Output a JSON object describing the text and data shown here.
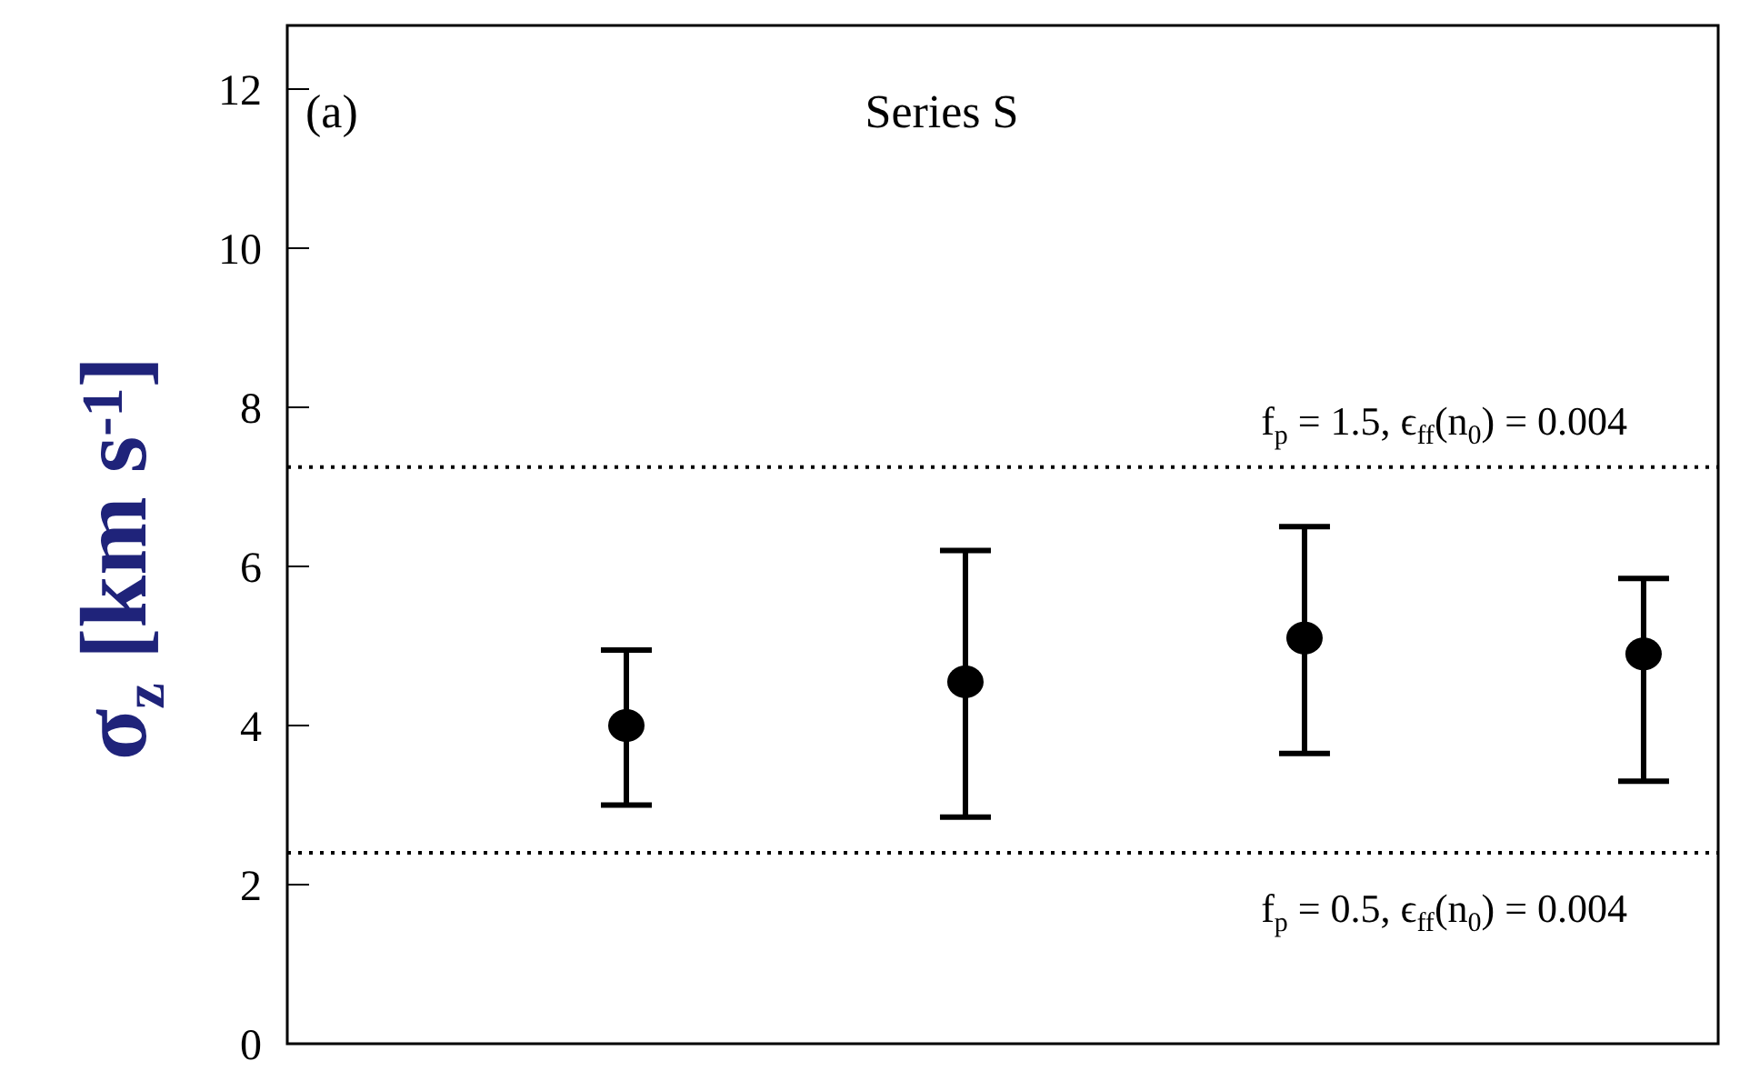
{
  "chart_data": {
    "type": "scatter",
    "title": "Series S",
    "ylabel": "σ$_{z}$ [km s$^{-1}$]",
    "annotations": [
      "(a)",
      {
        "text": "f$_{p}$ = 1.5, ϵ$_{ff}$(n$_{0}$) = 0.004",
        "y": 7.25
      },
      {
        "text": "f$_{p}$ = 0.5, ϵ$_{ff}$(n$_{0}$) = 0.004",
        "y": 2.4
      }
    ],
    "categories": [
      null,
      null,
      null,
      null
    ],
    "series": [
      {
        "color": "#000000",
        "values": [
          4.0,
          4.55,
          5.1,
          4.9
        ],
        "errors": [
          [
            3.0,
            4.95
          ],
          [
            2.85,
            6.2
          ],
          [
            3.65,
            6.5
          ],
          [
            3.3,
            5.85
          ]
        ]
      }
    ],
    "ylim": [
      0,
      12.8
    ],
    "yticks": [
      0,
      2,
      4,
      6,
      8,
      10,
      12
    ],
    "grid": false,
    "legend": false,
    "marker": "circle",
    "ref_lines": [
      {
        "axis": "y",
        "value": 7.25,
        "color": "#000000",
        "line_style": "dotted"
      },
      {
        "axis": "y",
        "value": 2.4,
        "color": "#000000",
        "line_style": "dotted"
      }
    ]
  }
}
